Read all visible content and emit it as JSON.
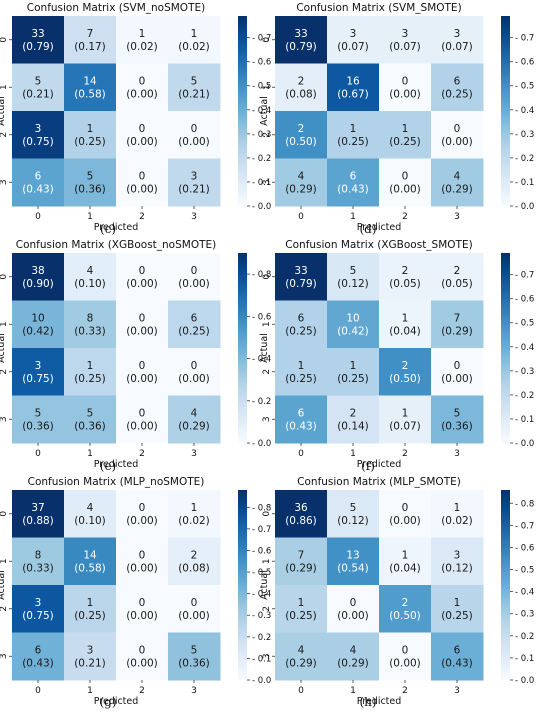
{
  "chart_data": [
    {
      "type": "heatmap",
      "panel_label": "(c)",
      "title": "Confusion Matrix (SVM_noSMOTE)",
      "xlabel": "Predicted",
      "ylabel": "Actual",
      "classes": [
        "0",
        "1",
        "2",
        "3"
      ],
      "counts": [
        [
          33,
          7,
          1,
          1
        ],
        [
          5,
          14,
          0,
          5
        ],
        [
          3,
          1,
          0,
          0
        ],
        [
          6,
          5,
          0,
          3
        ]
      ],
      "proportions": [
        [
          "0.79",
          "0.17",
          "0.02",
          "0.02"
        ],
        [
          "0.21",
          "0.58",
          "0.00",
          "0.21"
        ],
        [
          "0.75",
          "0.25",
          "0.00",
          "0.00"
        ],
        [
          "0.43",
          "0.36",
          "0.00",
          "0.21"
        ]
      ],
      "colorbar_ticks": [
        "0.0",
        "0.1",
        "0.2",
        "0.3",
        "0.4",
        "0.5",
        "0.6",
        "0.7"
      ],
      "vmax": 0.79,
      "colormap": "Blues"
    },
    {
      "type": "heatmap",
      "panel_label": "(d)",
      "title": "Confusion Matrix (SVM_SMOTE)",
      "xlabel": "Predicted",
      "ylabel": "Actual",
      "classes": [
        "0",
        "1",
        "2",
        "3"
      ],
      "counts": [
        [
          33,
          3,
          3,
          3
        ],
        [
          2,
          16,
          0,
          6
        ],
        [
          2,
          1,
          1,
          0
        ],
        [
          4,
          6,
          0,
          4
        ]
      ],
      "proportions": [
        [
          "0.79",
          "0.07",
          "0.07",
          "0.07"
        ],
        [
          "0.08",
          "0.67",
          "0.00",
          "0.25"
        ],
        [
          "0.50",
          "0.25",
          "0.25",
          "0.00"
        ],
        [
          "0.29",
          "0.43",
          "0.00",
          "0.29"
        ]
      ],
      "colorbar_ticks": [
        "0.0",
        "0.1",
        "0.2",
        "0.3",
        "0.4",
        "0.5",
        "0.6",
        "0.7"
      ],
      "vmax": 0.79,
      "colormap": "Blues"
    },
    {
      "type": "heatmap",
      "panel_label": "(e)",
      "title": "Confusion Matrix (XGBoost_noSMOTE)",
      "xlabel": "Predicted",
      "ylabel": "Actual",
      "classes": [
        "0",
        "1",
        "2",
        "3"
      ],
      "counts": [
        [
          38,
          4,
          0,
          0
        ],
        [
          10,
          8,
          0,
          6
        ],
        [
          3,
          1,
          0,
          0
        ],
        [
          5,
          5,
          0,
          4
        ]
      ],
      "proportions": [
        [
          "0.90",
          "0.10",
          "0.00",
          "0.00"
        ],
        [
          "0.42",
          "0.33",
          "0.00",
          "0.25"
        ],
        [
          "0.75",
          "0.25",
          "0.00",
          "0.00"
        ],
        [
          "0.36",
          "0.36",
          "0.00",
          "0.29"
        ]
      ],
      "colorbar_ticks": [
        "0.0",
        "0.2",
        "0.4",
        "0.6",
        "0.8"
      ],
      "vmax": 0.9,
      "colormap": "Blues"
    },
    {
      "type": "heatmap",
      "panel_label": "(f)",
      "title": "Confusion Matrix (XGBoost_SMOTE)",
      "xlabel": "Predicted",
      "ylabel": "Actual",
      "classes": [
        "0",
        "1",
        "2",
        "3"
      ],
      "counts": [
        [
          33,
          5,
          2,
          2
        ],
        [
          6,
          10,
          1,
          7
        ],
        [
          1,
          1,
          2,
          0
        ],
        [
          6,
          2,
          1,
          5
        ]
      ],
      "proportions": [
        [
          "0.79",
          "0.12",
          "0.05",
          "0.05"
        ],
        [
          "0.25",
          "0.42",
          "0.04",
          "0.29"
        ],
        [
          "0.25",
          "0.25",
          "0.50",
          "0.00"
        ],
        [
          "0.43",
          "0.14",
          "0.07",
          "0.36"
        ]
      ],
      "colorbar_ticks": [
        "0.0",
        "0.1",
        "0.2",
        "0.3",
        "0.4",
        "0.5",
        "0.6",
        "0.7"
      ],
      "vmax": 0.79,
      "colormap": "Blues"
    },
    {
      "type": "heatmap",
      "panel_label": "(g)",
      "title": "Confusion Matrix (MLP_noSMOTE)",
      "xlabel": "Predicted",
      "ylabel": "Actual",
      "classes": [
        "0",
        "1",
        "2",
        "3"
      ],
      "counts": [
        [
          37,
          4,
          0,
          1
        ],
        [
          8,
          14,
          0,
          2
        ],
        [
          3,
          1,
          0,
          0
        ],
        [
          6,
          3,
          0,
          5
        ]
      ],
      "proportions": [
        [
          "0.88",
          "0.10",
          "0.00",
          "0.02"
        ],
        [
          "0.33",
          "0.58",
          "0.00",
          "0.08"
        ],
        [
          "0.75",
          "0.25",
          "0.00",
          "0.00"
        ],
        [
          "0.43",
          "0.21",
          "0.00",
          "0.36"
        ]
      ],
      "colorbar_ticks": [
        "0.0",
        "0.1",
        "0.2",
        "0.3",
        "0.4",
        "0.5",
        "0.6",
        "0.7",
        "0.8"
      ],
      "vmax": 0.88,
      "colormap": "Blues"
    },
    {
      "type": "heatmap",
      "panel_label": "(h)",
      "title": "Confusion Matrix (MLP_SMOTE)",
      "xlabel": "Predicted",
      "ylabel": "Actual",
      "classes": [
        "0",
        "1",
        "2",
        "3"
      ],
      "counts": [
        [
          36,
          5,
          0,
          1
        ],
        [
          7,
          13,
          1,
          3
        ],
        [
          1,
          0,
          2,
          1
        ],
        [
          4,
          4,
          0,
          6
        ]
      ],
      "proportions": [
        [
          "0.86",
          "0.12",
          "0.00",
          "0.02"
        ],
        [
          "0.29",
          "0.54",
          "0.04",
          "0.12"
        ],
        [
          "0.25",
          "0.00",
          "0.50",
          "0.25"
        ],
        [
          "0.29",
          "0.29",
          "0.00",
          "0.43"
        ]
      ],
      "colorbar_ticks": [
        "0.0",
        "0.1",
        "0.2",
        "0.3",
        "0.4",
        "0.5",
        "0.6",
        "0.7",
        "0.8"
      ],
      "vmax": 0.86,
      "colormap": "Blues"
    }
  ]
}
